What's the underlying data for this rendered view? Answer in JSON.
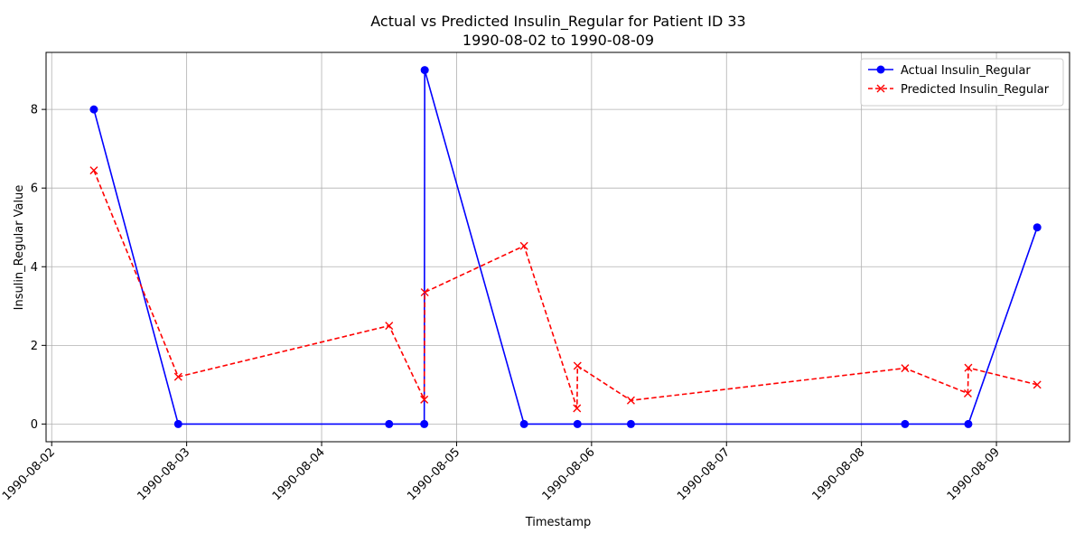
{
  "chart_data": {
    "type": "line",
    "title": "Actual vs Predicted Insulin_Regular for Patient ID 33",
    "subtitle": "1990-08-02 to 1990-08-09",
    "xlabel": "Timestamp",
    "ylabel": "Insulin_Regular Value",
    "x_ticks": [
      "1990-08-02",
      "1990-08-03",
      "1990-08-04",
      "1990-08-05",
      "1990-08-06",
      "1990-08-07",
      "1990-08-08",
      "1990-08-09"
    ],
    "y_ticks": [
      0,
      2,
      4,
      6,
      8
    ],
    "xlim": [
      "1990-08-01T23:00",
      "1990-08-09T13:00"
    ],
    "ylim": [
      -0.45,
      9.45
    ],
    "grid": true,
    "legend_position": "top-right",
    "series": [
      {
        "name": "Actual Insulin_Regular",
        "color": "#0000ff",
        "line_style": "solid",
        "marker": "circle",
        "points": [
          {
            "x": "1990-08-02T07:30",
            "y": 8
          },
          {
            "x": "1990-08-02T22:30",
            "y": 0
          },
          {
            "x": "1990-08-04T12:00",
            "y": 0
          },
          {
            "x": "1990-08-04T18:15",
            "y": 0
          },
          {
            "x": "1990-08-04T18:20",
            "y": 9
          },
          {
            "x": "1990-08-05T12:00",
            "y": 0
          },
          {
            "x": "1990-08-05T21:30",
            "y": 0
          },
          {
            "x": "1990-08-06T07:00",
            "y": 0
          },
          {
            "x": "1990-08-08T07:45",
            "y": 0
          },
          {
            "x": "1990-08-08T19:00",
            "y": 0
          },
          {
            "x": "1990-08-09T07:15",
            "y": 5
          }
        ]
      },
      {
        "name": "Predicted Insulin_Regular",
        "color": "#ff0000",
        "line_style": "dashed",
        "marker": "x",
        "points": [
          {
            "x": "1990-08-02T07:30",
            "y": 6.45
          },
          {
            "x": "1990-08-02T22:30",
            "y": 1.2
          },
          {
            "x": "1990-08-04T12:00",
            "y": 2.5
          },
          {
            "x": "1990-08-04T18:15",
            "y": 0.62
          },
          {
            "x": "1990-08-04T18:20",
            "y": 3.35
          },
          {
            "x": "1990-08-05T12:00",
            "y": 4.53
          },
          {
            "x": "1990-08-05T21:25",
            "y": 0.4
          },
          {
            "x": "1990-08-05T21:30",
            "y": 1.48
          },
          {
            "x": "1990-08-06T07:00",
            "y": 0.6
          },
          {
            "x": "1990-08-08T07:45",
            "y": 1.42
          },
          {
            "x": "1990-08-08T18:55",
            "y": 0.78
          },
          {
            "x": "1990-08-08T19:00",
            "y": 1.43
          },
          {
            "x": "1990-08-09T07:15",
            "y": 1.0
          }
        ]
      }
    ]
  }
}
